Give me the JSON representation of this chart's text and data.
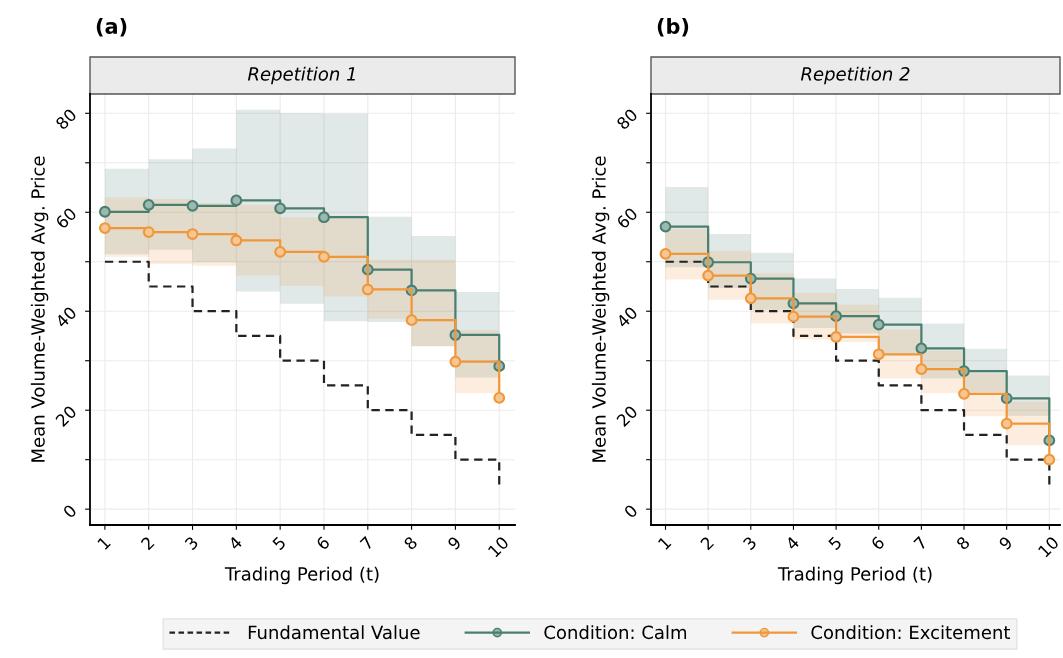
{
  "chart_data": [
    {
      "type": "step",
      "title": "(a)",
      "subtitle": "Repetition 1",
      "xlabel": "Trading Period (t)",
      "ylabel": "Mean Volume-Weighted Avg. Price",
      "x": [
        1,
        2,
        3,
        4,
        5,
        6,
        7,
        8,
        9,
        10
      ],
      "xlim": [
        0.66,
        10.36
      ],
      "xticks": [
        1,
        2,
        3,
        4,
        5,
        6,
        7,
        8,
        9,
        10
      ],
      "ylim": [
        -3.2,
        83.9
      ],
      "yticks": [
        0,
        {
          "value": 10,
          "label": null
        },
        20,
        {
          "value": 30,
          "label": null
        },
        40,
        {
          "value": 50,
          "label": null
        },
        60,
        {
          "value": 70,
          "label": null
        },
        80
      ],
      "grid": true,
      "legend": "bottom",
      "series": [
        {
          "name": "Fundamental Value",
          "color": "#222222",
          "line_style": "dashed",
          "marker": "none",
          "values": [
            50,
            45,
            40,
            35,
            30,
            25,
            20,
            15,
            10,
            5
          ]
        },
        {
          "name": "Condition: Calm",
          "color": "#4a7f6f",
          "marker": "circle",
          "values": [
            60.1,
            61.5,
            61.3,
            62.4,
            60.8,
            59.0,
            48.4,
            44.2,
            35.2,
            28.9
          ],
          "lower": [
            51.5,
            52.4,
            49.9,
            44.0,
            41.5,
            38.0,
            37.8,
            32.9,
            26.6,
            26.6
          ],
          "upper": [
            68.8,
            70.7,
            72.9,
            80.7,
            80.0,
            79.9,
            59.1,
            55.2,
            43.9,
            43.9
          ]
        },
        {
          "name": "Condition: Excitement",
          "color": "#f0973a",
          "marker": "circle",
          "values": [
            56.8,
            56.0,
            55.6,
            54.3,
            52.0,
            51.0,
            44.4,
            38.2,
            29.8,
            22.5
          ],
          "lower": [
            51.0,
            49.6,
            49.2,
            47.2,
            45.1,
            43.0,
            38.5,
            32.9,
            23.4,
            23.4
          ],
          "upper": [
            63.0,
            62.7,
            61.8,
            61.5,
            59.0,
            59.0,
            50.4,
            50.4,
            36.2,
            36.2
          ]
        }
      ]
    },
    {
      "type": "step",
      "title": "(b)",
      "subtitle": "Repetition 2",
      "xlabel": "Trading Period (t)",
      "ylabel": "Mean Volume-Weighted Avg. Price",
      "x": [
        1,
        2,
        3,
        4,
        5,
        6,
        7,
        8,
        9,
        10
      ],
      "xlim": [
        0.66,
        10.25
      ],
      "xticks": [
        1,
        2,
        3,
        4,
        5,
        6,
        7,
        8,
        9,
        10
      ],
      "ylim": [
        -3.2,
        83.9
      ],
      "yticks": [
        0,
        {
          "value": 10,
          "label": null
        },
        20,
        {
          "value": 30,
          "label": null
        },
        40,
        {
          "value": 50,
          "label": null
        },
        60,
        {
          "value": 70,
          "label": null
        },
        80
      ],
      "grid": true,
      "series": [
        {
          "color": "#222222",
          "line_style": "dashed",
          "marker": "none",
          "values": [
            50,
            45,
            40,
            35,
            30,
            25,
            20,
            15,
            10,
            5
          ]
        },
        {
          "color": "#4a7f6f",
          "marker": "circle",
          "values": [
            57.1,
            49.9,
            46.6,
            41.6,
            39.0,
            37.3,
            32.5,
            27.9,
            22.4,
            13.9
          ],
          "lower": [
            48.9,
            44.7,
            40.3,
            36.6,
            35.5,
            31.3,
            26.4,
            23.6,
            18.9,
            18.9
          ],
          "upper": [
            65.1,
            55.6,
            51.8,
            46.6,
            44.5,
            42.7,
            37.5,
            32.4,
            27.0,
            27.0
          ]
        },
        {
          "color": "#f0973a",
          "marker": "circle",
          "values": [
            51.6,
            47.2,
            42.6,
            38.9,
            34.8,
            31.3,
            28.3,
            23.3,
            17.3,
            10.0
          ],
          "lower": [
            46.4,
            42.3,
            37.5,
            34.3,
            33.8,
            26.4,
            23.4,
            18.8,
            12.9,
            12.9
          ],
          "upper": [
            56.6,
            52.2,
            47.7,
            43.7,
            41.3,
            36.3,
            32.0,
            27.4,
            21.7,
            21.7
          ]
        }
      ]
    }
  ]
}
